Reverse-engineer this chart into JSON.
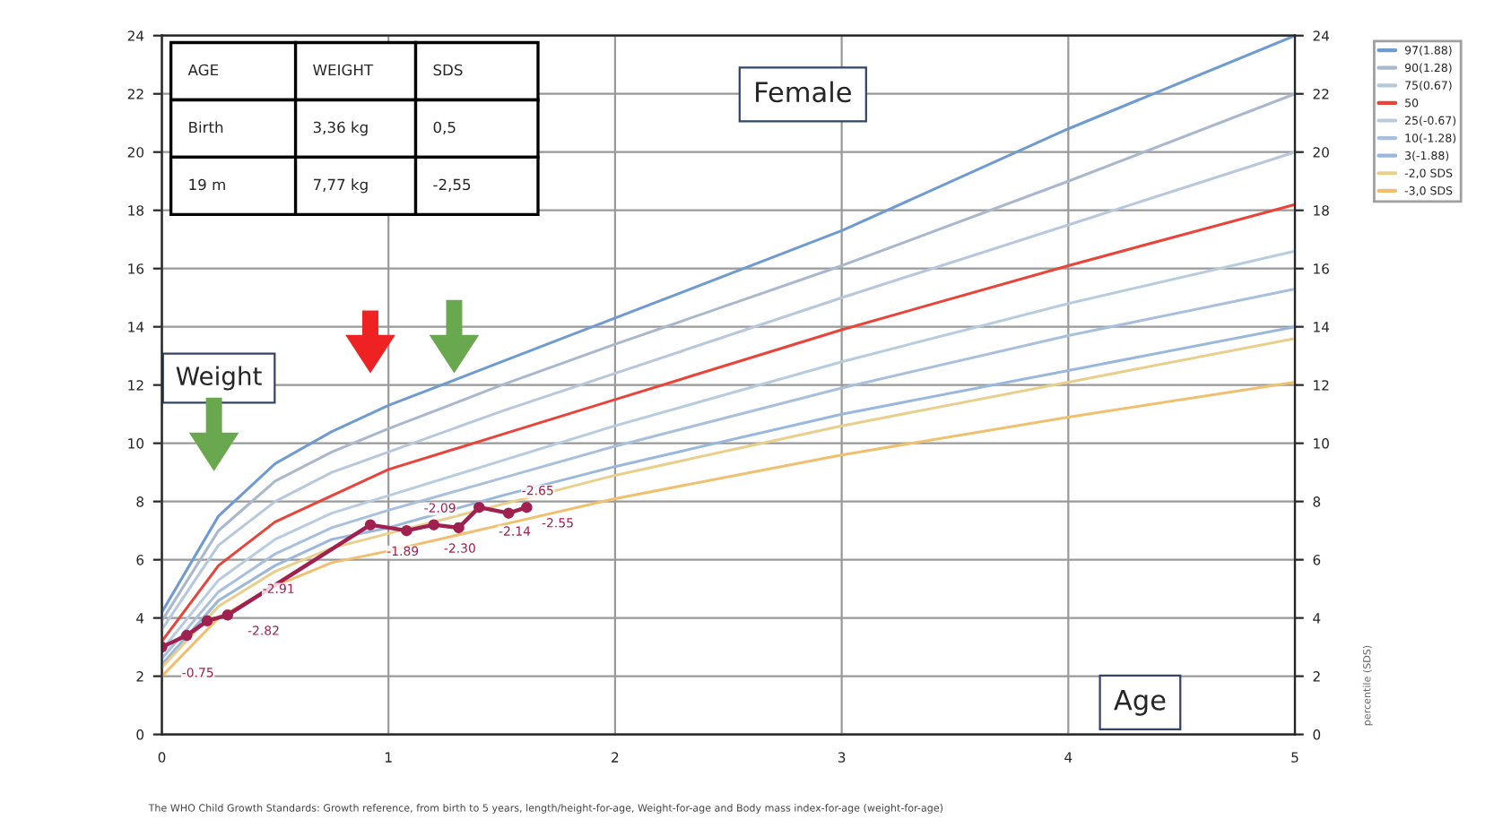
{
  "chart_data": {
    "type": "line",
    "x": [
      0,
      0.25,
      0.5,
      0.75,
      1,
      1.5,
      2,
      3,
      4,
      5
    ],
    "series": [
      {
        "name": "97(1.88)",
        "color": "#6f9bd0",
        "values": [
          4.2,
          7.5,
          9.3,
          10.4,
          11.3,
          12.8,
          14.3,
          17.3,
          20.8,
          24.0
        ]
      },
      {
        "name": "90(1.28)",
        "color": "#a9b8cc",
        "values": [
          3.9,
          7.0,
          8.7,
          9.7,
          10.5,
          12.0,
          13.4,
          16.1,
          19.0,
          22.0
        ]
      },
      {
        "name": "75(0.67)",
        "color": "#b8c8dc",
        "values": [
          3.6,
          6.5,
          8.0,
          9.0,
          9.7,
          11.1,
          12.4,
          15.0,
          17.5,
          20.0
        ]
      },
      {
        "name": "50",
        "color": "#e8443a",
        "values": [
          3.2,
          5.8,
          7.3,
          8.2,
          9.1,
          10.3,
          11.5,
          13.9,
          16.1,
          18.2
        ]
      },
      {
        "name": "25(-0.67)",
        "color": "#b8cce0",
        "values": [
          2.9,
          5.3,
          6.7,
          7.6,
          8.2,
          9.4,
          10.6,
          12.8,
          14.8,
          16.6
        ]
      },
      {
        "name": "10(-1.28)",
        "color": "#a8c0dc",
        "values": [
          2.6,
          4.9,
          6.2,
          7.1,
          7.7,
          8.8,
          9.9,
          11.9,
          13.7,
          15.3
        ]
      },
      {
        "name": "3(-1.88)",
        "color": "#9ab8dc",
        "values": [
          2.4,
          4.6,
          5.8,
          6.7,
          7.1,
          8.2,
          9.2,
          11.0,
          12.5,
          14.0
        ]
      },
      {
        "name": "-2,0 SDS",
        "color": "#e8d08c",
        "values": [
          2.3,
          4.4,
          5.6,
          6.4,
          6.9,
          7.9,
          8.9,
          10.6,
          12.1,
          13.6
        ]
      },
      {
        "name": "-3,0 SDS",
        "color": "#f0c070",
        "values": [
          2.0,
          4.0,
          5.1,
          5.9,
          6.3,
          7.2,
          8.1,
          9.6,
          10.9,
          12.1
        ]
      },
      {
        "color": "#a0204f",
        "marker": "circle",
        "x": [
          0,
          0.11,
          0.2,
          0.29,
          0.92,
          1.08,
          1.2,
          1.31,
          1.4,
          1.53,
          1.61
        ],
        "values": [
          3.0,
          3.4,
          3.9,
          4.1,
          7.2,
          7.0,
          7.2,
          7.1,
          7.8,
          7.6,
          7.8
        ]
      }
    ],
    "xlim": [
      0,
      5
    ],
    "xticks": [
      0,
      1,
      2,
      3,
      4,
      5
    ],
    "ylim": [
      0,
      24
    ],
    "yticks": [
      0,
      2,
      4,
      6,
      8,
      10,
      12,
      14,
      16,
      18,
      20,
      22,
      24
    ],
    "y2lim": [
      0,
      24
    ],
    "y2ticks": [
      0,
      2,
      4,
      6,
      8,
      10,
      12,
      14,
      16,
      18,
      20,
      22,
      24
    ],
    "y2label": "percentile (SDS)",
    "grid": true,
    "legend": "top right",
    "annotations": [
      "AGE",
      "WEIGHT",
      "SDS",
      "Birth",
      "3,36 kg",
      "0,5",
      "19 m",
      "7,77 kg",
      "-2,55",
      "Female",
      "Weight",
      "Age",
      "The WHO Child Growth Standards: Growth reference, from birth to 5 years, length/height-for-age, Weight-for-age and Body mass index-for-age (weight-for-age)",
      {
        "text": "-0.75",
        "x": 0,
        "y": 3.0
      },
      {
        "text": "-2.82",
        "x": 0.29,
        "y": 4.1
      },
      {
        "text": "-2.91",
        "x": 0.4,
        "y": 4.6
      },
      {
        "text": "-1.89",
        "x": 1.08,
        "y": 7.0
      },
      {
        "text": "-2.09",
        "x": 1.2,
        "y": 7.2
      },
      {
        "text": "-2.30",
        "x": 1.31,
        "y": 7.1
      },
      {
        "text": "-2.14",
        "x": 1.53,
        "y": 7.6
      },
      {
        "text": "-2.65",
        "x": 1.61,
        "y": 7.8
      },
      {
        "text": "-2.55",
        "x": 1.61,
        "y": 7.8
      }
    ]
  }
}
